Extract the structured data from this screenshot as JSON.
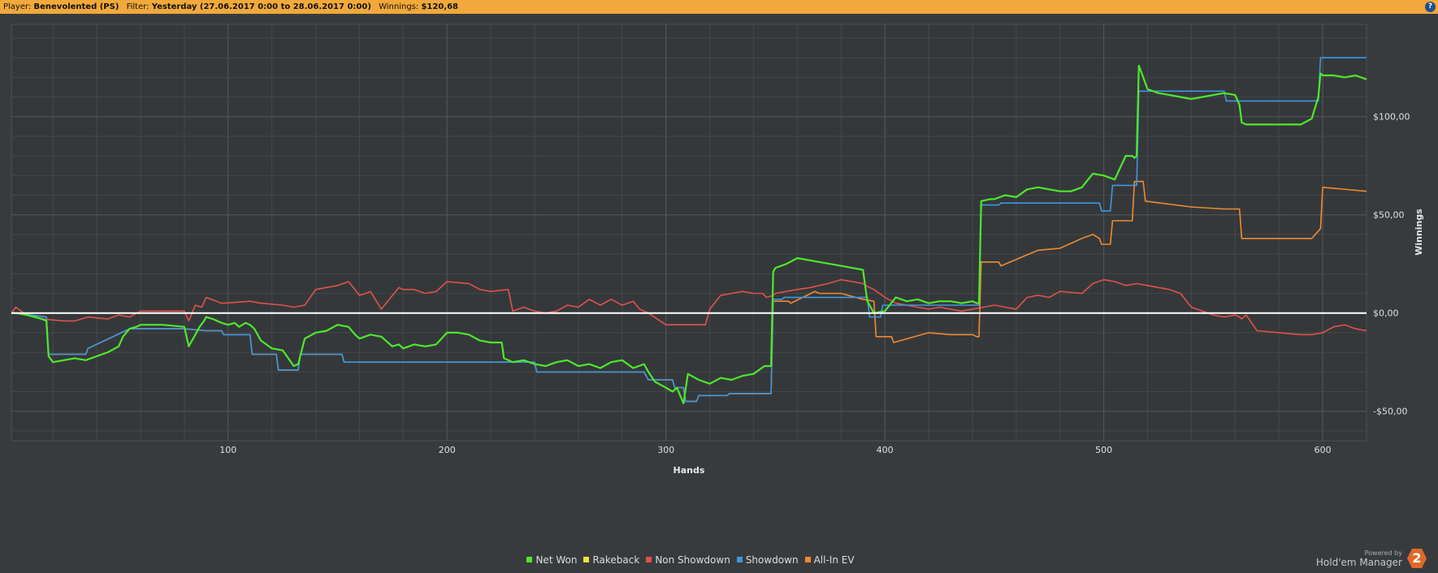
{
  "header": {
    "player_label": "Player:",
    "player_value": "Benevolented (PS)",
    "filter_label": "Filter:",
    "filter_value": "Yesterday (27.06.2017 0:00 to 28.06.2017 0:00)",
    "winnings_label": "Winnings:",
    "winnings_value": "$120,68",
    "help_glyph": "?"
  },
  "branding": {
    "powered_by": "Powered by",
    "product": "Hold'em Manager",
    "logo_text": "2"
  },
  "chart_data": {
    "type": "line",
    "title": "",
    "xlabel": "Hands",
    "ylabel": "Winnings",
    "xlim": [
      1,
      620
    ],
    "ylim": [
      -65,
      147
    ],
    "xticks": [
      100,
      200,
      300,
      400,
      500,
      600
    ],
    "yticks": [
      {
        "value": 100,
        "label": "$100,00"
      },
      {
        "value": 50,
        "label": "$50,00"
      },
      {
        "value": 0,
        "label": "$0,00"
      },
      {
        "value": -50,
        "label": "-$50,00"
      }
    ],
    "grid": true,
    "legend": "bottom-center",
    "legend_entries": [
      {
        "name": "Net Won",
        "color": "#4ee82c"
      },
      {
        "name": "Rakeback",
        "color": "#f0e43a"
      },
      {
        "name": "Non Showdown",
        "color": "#e0524a"
      },
      {
        "name": "Showdown",
        "color": "#3f97dd"
      },
      {
        "name": "All-In EV",
        "color": "#ee8a32"
      }
    ],
    "series": [
      {
        "name": "Showdown",
        "color": "#3f97dd",
        "x": [
          1,
          5,
          10,
          17,
          18,
          35,
          36,
          55,
          56,
          80,
          90,
          97,
          98,
          110,
          111,
          122,
          123,
          132,
          133,
          152,
          153,
          178,
          179,
          225,
          226,
          240,
          241,
          290,
          292,
          303,
          304,
          308,
          309,
          314,
          315,
          328,
          329,
          348,
          349,
          353,
          354,
          392,
          393,
          398,
          399,
          440,
          442,
          443,
          444,
          452,
          453,
          498,
          499,
          503,
          504,
          515,
          516,
          555,
          556,
          583,
          584,
          598,
          599,
          620
        ],
        "y": [
          0,
          0,
          -1,
          -2,
          -21,
          -21,
          -18,
          -8,
          -8,
          -8,
          -9,
          -9,
          -11,
          -11,
          -21,
          -21,
          -29,
          -29,
          -21,
          -21,
          -25,
          -25,
          -25,
          -25,
          -25,
          -25,
          -30,
          -30,
          -34,
          -34,
          -38,
          -38,
          -45,
          -45,
          -42,
          -42,
          -41,
          -41,
          7,
          7,
          8,
          8,
          -2,
          -2,
          4,
          4,
          4,
          4,
          55,
          55,
          56,
          56,
          52,
          52,
          65,
          65,
          113,
          113,
          108,
          108,
          108,
          108,
          130,
          130
        ]
      },
      {
        "name": "All-In EV",
        "color": "#ee8a32",
        "x": [
          1,
          5,
          10,
          17,
          18,
          35,
          36,
          55,
          56,
          80,
          90,
          97,
          98,
          110,
          111,
          122,
          123,
          132,
          133,
          152,
          153,
          178,
          179,
          225,
          226,
          240,
          241,
          290,
          292,
          303,
          304,
          308,
          309,
          314,
          315,
          328,
          329,
          348,
          349,
          356,
          357,
          368,
          370,
          380,
          390,
          395,
          396,
          403,
          404,
          420,
          430,
          440,
          442,
          443,
          444,
          452,
          453,
          470,
          480,
          490,
          495,
          498,
          499,
          503,
          504,
          513,
          514,
          518,
          519,
          540,
          555,
          562,
          563,
          580,
          595,
          599,
          600,
          620
        ],
        "y": [
          0,
          0,
          -1,
          -2,
          -21,
          -21,
          -18,
          -8,
          -8,
          -8,
          -9,
          -9,
          -11,
          -11,
          -21,
          -21,
          -29,
          -29,
          -21,
          -21,
          -25,
          -25,
          -25,
          -25,
          -25,
          -25,
          -30,
          -30,
          -34,
          -34,
          -38,
          -38,
          -45,
          -45,
          -42,
          -42,
          -41,
          -41,
          6,
          6,
          5,
          11,
          10,
          10,
          7,
          6,
          -12,
          -12,
          -15,
          -10,
          -11,
          -11,
          -12,
          -12,
          26,
          26,
          24,
          32,
          33,
          38,
          40,
          38,
          35,
          35,
          47,
          47,
          67,
          67,
          57,
          54,
          53,
          53,
          38,
          38,
          38,
          43,
          64,
          62
        ]
      },
      {
        "name": "Non Showdown",
        "color": "#e0524a",
        "x": [
          1,
          3,
          8,
          15,
          25,
          30,
          36,
          45,
          50,
          55,
          60,
          70,
          80,
          82,
          85,
          88,
          90,
          97,
          98,
          110,
          115,
          125,
          130,
          135,
          140,
          150,
          155,
          160,
          163,
          165,
          170,
          178,
          180,
          185,
          190,
          195,
          200,
          210,
          215,
          220,
          228,
          230,
          235,
          240,
          245,
          250,
          255,
          260,
          265,
          270,
          275,
          280,
          285,
          288,
          290,
          292,
          300,
          305,
          310,
          318,
          320,
          325,
          330,
          335,
          340,
          344,
          346,
          349,
          350,
          355,
          360,
          366,
          370,
          374,
          380,
          385,
          390,
          393,
          395,
          400,
          405,
          410,
          415,
          420,
          425,
          430,
          435,
          440,
          445,
          450,
          455,
          460,
          465,
          470,
          475,
          480,
          490,
          495,
          500,
          505,
          510,
          515,
          520,
          525,
          530,
          535,
          540,
          545,
          550,
          555,
          560,
          562,
          563,
          565,
          570,
          580,
          590,
          595,
          600,
          605,
          610,
          615,
          620
        ],
        "y": [
          0,
          3,
          -1,
          -3,
          -4,
          -4,
          -2,
          -3,
          -1,
          -2,
          1,
          1,
          1,
          -4,
          4,
          3,
          8,
          5,
          5,
          6,
          5,
          4,
          3,
          4,
          12,
          14,
          16,
          9,
          10,
          11,
          2,
          13,
          12,
          12,
          10,
          11,
          16,
          15,
          12,
          11,
          12,
          1,
          3,
          1,
          0,
          1,
          4,
          3,
          7,
          4,
          7,
          4,
          6,
          2,
          1,
          0,
          -6,
          -6,
          -6,
          -6,
          2,
          9,
          10,
          11,
          10,
          10,
          8,
          9,
          10,
          11,
          12,
          13,
          14,
          15,
          17,
          16,
          15,
          13,
          12,
          8,
          5,
          4,
          3,
          2,
          3,
          2,
          1,
          2,
          3,
          4,
          3,
          2,
          8,
          9,
          8,
          11,
          10,
          15,
          17,
          16,
          14,
          15,
          14,
          13,
          12,
          10,
          3,
          1,
          -1,
          -2,
          -1,
          -2,
          -3,
          -1,
          -9,
          -10,
          -11,
          -11,
          -10,
          -7,
          -6,
          -8,
          -9
        ]
      },
      {
        "name": "Net Won",
        "color": "#4ee82c",
        "x": [
          1,
          3,
          8,
          15,
          17,
          18,
          20,
          25,
          30,
          35,
          40,
          45,
          50,
          52,
          55,
          58,
          60,
          70,
          80,
          82,
          85,
          87,
          89,
          90,
          93,
          97,
          100,
          103,
          105,
          108,
          110,
          112,
          115,
          120,
          125,
          130,
          132,
          135,
          140,
          145,
          150,
          155,
          158,
          160,
          165,
          170,
          175,
          178,
          180,
          185,
          190,
          195,
          200,
          205,
          210,
          215,
          220,
          225,
          226,
          230,
          235,
          240,
          245,
          250,
          255,
          260,
          265,
          270,
          275,
          280,
          285,
          290,
          292,
          295,
          300,
          303,
          305,
          308,
          310,
          315,
          320,
          325,
          330,
          335,
          340,
          345,
          348,
          349,
          350,
          355,
          360,
          365,
          370,
          375,
          380,
          385,
          390,
          392,
          393,
          395,
          400,
          405,
          410,
          415,
          420,
          425,
          430,
          435,
          440,
          442,
          443,
          444,
          448,
          450,
          455,
          460,
          465,
          470,
          475,
          480,
          485,
          490,
          495,
          500,
          505,
          510,
          513,
          514,
          515,
          516,
          520,
          525,
          530,
          535,
          540,
          545,
          550,
          555,
          560,
          562,
          563,
          565,
          570,
          580,
          590,
          595,
          598,
          599,
          600,
          605,
          610,
          615,
          620
        ],
        "y": [
          0,
          0,
          -1,
          -3,
          -4,
          -22,
          -25,
          -24,
          -23,
          -24,
          -22,
          -20,
          -17,
          -12,
          -8,
          -7,
          -6,
          -6,
          -7,
          -17,
          -11,
          -7,
          -4,
          -2,
          -3,
          -5,
          -6,
          -5,
          -7,
          -5,
          -6,
          -8,
          -14,
          -18,
          -19,
          -27,
          -26,
          -13,
          -10,
          -9,
          -6,
          -7,
          -11,
          -13,
          -11,
          -12,
          -17,
          -16,
          -18,
          -16,
          -17,
          -16,
          -10,
          -10,
          -11,
          -14,
          -15,
          -15,
          -23,
          -25,
          -24,
          -26,
          -27,
          -25,
          -24,
          -27,
          -26,
          -28,
          -25,
          -24,
          -28,
          -26,
          -30,
          -35,
          -38,
          -40,
          -38,
          -46,
          -31,
          -34,
          -36,
          -33,
          -34,
          -32,
          -31,
          -27,
          -27,
          21,
          23,
          25,
          28,
          27,
          26,
          25,
          24,
          23,
          22,
          6,
          4,
          0,
          1,
          8,
          6,
          7,
          5,
          6,
          6,
          5,
          6,
          5,
          5,
          57,
          58,
          58,
          60,
          59,
          63,
          64,
          63,
          62,
          62,
          64,
          71,
          70,
          68,
          80,
          80,
          79,
          80,
          126,
          114,
          112,
          111,
          110,
          109,
          110,
          111,
          112,
          111,
          106,
          97,
          96,
          96,
          96,
          96,
          99,
          110,
          122,
          121,
          121,
          120,
          121,
          119
        ]
      },
      {
        "name": "Zero Line",
        "color": "#ffffff",
        "x": [
          1,
          620
        ],
        "y": [
          0,
          0
        ]
      }
    ]
  }
}
